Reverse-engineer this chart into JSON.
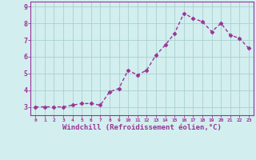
{
  "x": [
    0,
    1,
    2,
    3,
    4,
    5,
    6,
    7,
    8,
    9,
    10,
    11,
    12,
    13,
    14,
    15,
    16,
    17,
    18,
    19,
    20,
    21,
    22,
    23
  ],
  "y": [
    3.0,
    3.0,
    3.0,
    3.0,
    3.1,
    3.2,
    3.2,
    3.1,
    3.9,
    4.1,
    5.2,
    4.9,
    5.2,
    6.1,
    6.7,
    7.4,
    8.6,
    8.3,
    8.1,
    7.5,
    8.0,
    7.3,
    7.1,
    6.5
  ],
  "line_color": "#993399",
  "marker": "D",
  "marker_size": 2.5,
  "linewidth": 1.0,
  "xlabel": "Windchill (Refroidissement éolien,°C)",
  "xlabel_fontsize": 6.5,
  "ytick_labels": [
    "3",
    "4",
    "5",
    "6",
    "7",
    "8",
    "9"
  ],
  "ytick_values": [
    3,
    4,
    5,
    6,
    7,
    8,
    9
  ],
  "xtick_values": [
    0,
    1,
    2,
    3,
    4,
    5,
    6,
    7,
    8,
    9,
    10,
    11,
    12,
    13,
    14,
    15,
    16,
    17,
    18,
    19,
    20,
    21,
    22,
    23
  ],
  "ylim": [
    2.5,
    9.3
  ],
  "xlim": [
    -0.5,
    23.5
  ],
  "bg_color": "#d2eeee",
  "grid_color": "#aad0d0",
  "tick_color": "#993399",
  "spine_color": "#993399",
  "axis_bg": "#d2eeee"
}
